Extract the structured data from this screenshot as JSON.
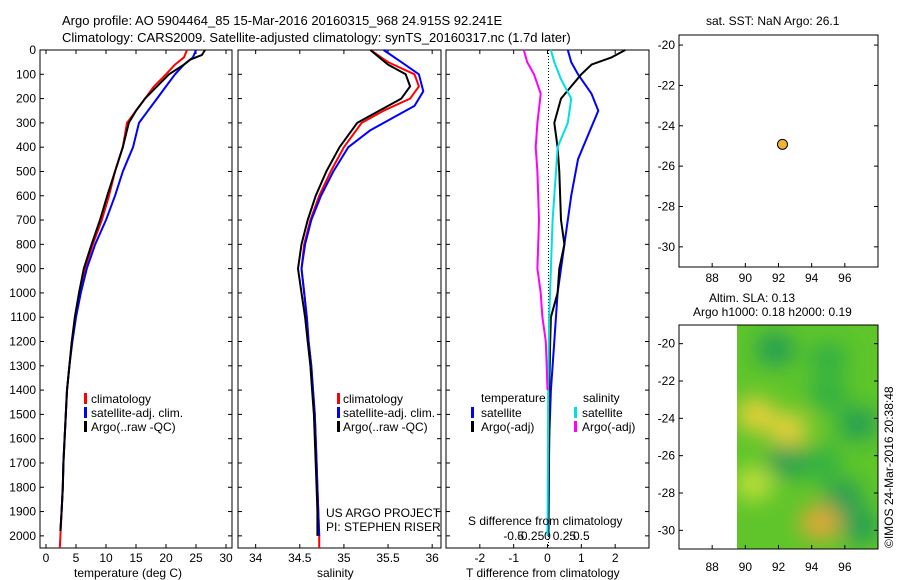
{
  "header": {
    "line1": "Argo profile: AO 5904464_85 15-Mar-2016 20160315_968 24.915S 92.241E",
    "line2": "Climatology: CARS2009. Satellite-adjusted climatology: synTS_20160317.nc (1.7d later)"
  },
  "colors": {
    "clim": "#ff0000",
    "sat": "#0000ff",
    "argo": "#000000",
    "sat_s": "#00e0e0",
    "argo_s": "#ff00ff"
  },
  "depth_axis": {
    "ticks": [
      0,
      100,
      200,
      300,
      400,
      500,
      600,
      700,
      800,
      900,
      1000,
      1100,
      1200,
      1300,
      1400,
      1500,
      1600,
      1700,
      1800,
      1900,
      2000
    ],
    "range": [
      0,
      2050
    ]
  },
  "chart_data": [
    {
      "type": "line",
      "name": "temperature-profile",
      "xlabel": "temperature (deg C)",
      "xlim": [
        -1,
        31
      ],
      "xticks": [
        0,
        5,
        10,
        15,
        20,
        25,
        30
      ],
      "yrange": [
        0,
        2050
      ],
      "legend": [
        "climatology",
        "satellite-adj. clim.",
        "Argo(..raw -QC)"
      ],
      "series": [
        {
          "name": "climatology",
          "color": "#ff0000",
          "points": [
            [
              23.5,
              0
            ],
            [
              23,
              30
            ],
            [
              21.5,
              60
            ],
            [
              20,
              100
            ],
            [
              18,
              150
            ],
            [
              16.5,
              200
            ],
            [
              15,
              250
            ],
            [
              13.5,
              300
            ],
            [
              12.8,
              400
            ],
            [
              11.5,
              500
            ],
            [
              10.5,
              600
            ],
            [
              9.3,
              700
            ],
            [
              7.8,
              800
            ],
            [
              6.5,
              900
            ],
            [
              5.6,
              1000
            ],
            [
              4.9,
              1100
            ],
            [
              4.3,
              1200
            ],
            [
              3.9,
              1300
            ],
            [
              3.5,
              1400
            ],
            [
              3.3,
              1500
            ],
            [
              3.1,
              1600
            ],
            [
              2.9,
              1700
            ],
            [
              2.8,
              1800
            ],
            [
              2.6,
              1900
            ],
            [
              2.4,
              2000
            ],
            [
              2.3,
              2050
            ]
          ]
        },
        {
          "name": "satellite-adj. clim.",
          "color": "#0000ff",
          "points": [
            [
              25,
              0
            ],
            [
              24.5,
              30
            ],
            [
              23,
              60
            ],
            [
              21.5,
              100
            ],
            [
              20,
              150
            ],
            [
              18.5,
              200
            ],
            [
              17,
              250
            ],
            [
              15.5,
              300
            ],
            [
              14.5,
              400
            ],
            [
              12.8,
              500
            ],
            [
              11.5,
              600
            ],
            [
              10,
              700
            ],
            [
              8.2,
              800
            ],
            [
              6.8,
              900
            ],
            [
              5.8,
              1000
            ],
            [
              5,
              1100
            ],
            [
              4.4,
              1200
            ],
            [
              3.9,
              1300
            ],
            [
              3.5,
              1400
            ],
            [
              3.3,
              1500
            ],
            [
              3.1,
              1600
            ],
            [
              2.9,
              1700
            ],
            [
              2.8,
              1800
            ],
            [
              2.6,
              1900
            ],
            [
              2.4,
              1980
            ]
          ]
        },
        {
          "name": "Argo(..raw -QC)",
          "color": "#000000",
          "points": [
            [
              26.5,
              0
            ],
            [
              26,
              20
            ],
            [
              24,
              40
            ],
            [
              23,
              60
            ],
            [
              20.5,
              100
            ],
            [
              18.5,
              150
            ],
            [
              16.5,
              200
            ],
            [
              15,
              250
            ],
            [
              13.8,
              300
            ],
            [
              12.8,
              400
            ],
            [
              11.5,
              500
            ],
            [
              10.2,
              600
            ],
            [
              9,
              700
            ],
            [
              7.6,
              800
            ],
            [
              6.3,
              900
            ],
            [
              5.5,
              1000
            ],
            [
              4.8,
              1100
            ],
            [
              4.3,
              1200
            ],
            [
              3.9,
              1300
            ],
            [
              3.5,
              1400
            ],
            [
              3.3,
              1500
            ],
            [
              3.1,
              1600
            ],
            [
              2.9,
              1700
            ],
            [
              2.8,
              1800
            ],
            [
              2.6,
              1900
            ],
            [
              2.4,
              1980
            ]
          ]
        }
      ]
    },
    {
      "type": "line",
      "name": "salinity-profile",
      "xlabel": "salinity",
      "xlim": [
        33.8,
        36.1
      ],
      "xticks": [
        34,
        34.5,
        35,
        35.5,
        36
      ],
      "yrange": [
        0,
        2050
      ],
      "legend": [
        "climatology",
        "satellite-adj. clim.",
        "Argo(..raw -QC)"
      ],
      "series": [
        {
          "name": "climatology",
          "color": "#ff0000",
          "points": [
            [
              35.3,
              0
            ],
            [
              35.5,
              50
            ],
            [
              35.8,
              100
            ],
            [
              35.85,
              150
            ],
            [
              35.75,
              200
            ],
            [
              35.45,
              250
            ],
            [
              35.2,
              300
            ],
            [
              35,
              400
            ],
            [
              34.85,
              500
            ],
            [
              34.72,
              600
            ],
            [
              34.62,
              700
            ],
            [
              34.55,
              800
            ],
            [
              34.52,
              900
            ],
            [
              34.55,
              1000
            ],
            [
              34.58,
              1100
            ],
            [
              34.6,
              1200
            ],
            [
              34.63,
              1300
            ],
            [
              34.65,
              1400
            ],
            [
              34.67,
              1500
            ],
            [
              34.68,
              1600
            ],
            [
              34.69,
              1700
            ],
            [
              34.7,
              1800
            ],
            [
              34.71,
              1900
            ],
            [
              34.72,
              2000
            ],
            [
              34.72,
              2050
            ]
          ]
        },
        {
          "name": "satellite-adj. clim.",
          "color": "#0000ff",
          "points": [
            [
              35.45,
              0
            ],
            [
              35.65,
              50
            ],
            [
              35.85,
              100
            ],
            [
              35.9,
              170
            ],
            [
              35.8,
              230
            ],
            [
              35.55,
              280
            ],
            [
              35.3,
              330
            ],
            [
              35.05,
              400
            ],
            [
              34.88,
              500
            ],
            [
              34.74,
              600
            ],
            [
              34.63,
              700
            ],
            [
              34.56,
              800
            ],
            [
              34.52,
              900
            ],
            [
              34.55,
              1000
            ],
            [
              34.58,
              1100
            ],
            [
              34.6,
              1200
            ],
            [
              34.63,
              1300
            ],
            [
              34.65,
              1400
            ],
            [
              34.67,
              1500
            ],
            [
              34.68,
              1600
            ],
            [
              34.69,
              1700
            ],
            [
              34.7,
              1800
            ],
            [
              34.71,
              1900
            ],
            [
              34.72,
              2000
            ]
          ]
        },
        {
          "name": "Argo(..raw -QC)",
          "color": "#000000",
          "points": [
            [
              35.3,
              0
            ],
            [
              35.4,
              30
            ],
            [
              35.5,
              60
            ],
            [
              35.7,
              100
            ],
            [
              35.75,
              150
            ],
            [
              35.65,
              200
            ],
            [
              35.4,
              250
            ],
            [
              35.15,
              300
            ],
            [
              34.95,
              400
            ],
            [
              34.8,
              500
            ],
            [
              34.68,
              600
            ],
            [
              34.59,
              700
            ],
            [
              34.52,
              800
            ],
            [
              34.48,
              900
            ],
            [
              34.52,
              1000
            ],
            [
              34.56,
              1100
            ],
            [
              34.59,
              1200
            ],
            [
              34.62,
              1300
            ],
            [
              34.64,
              1400
            ],
            [
              34.66,
              1500
            ],
            [
              34.67,
              1600
            ],
            [
              34.68,
              1700
            ],
            [
              34.69,
              1800
            ],
            [
              34.7,
              1900
            ],
            [
              34.7,
              2000
            ]
          ]
        }
      ]
    },
    {
      "type": "line",
      "name": "difference-profile",
      "xlabel": "T difference from climatology",
      "xlabel_top": "S difference from climatology",
      "xlim": [
        -3,
        3
      ],
      "xticks": [
        -2,
        -1,
        0,
        1,
        2
      ],
      "xticks_top": [
        "-0.5",
        "-0.25",
        "0",
        "0.25",
        "0.5"
      ],
      "yrange": [
        0,
        2050
      ],
      "legend_titles": [
        "temperature",
        "salinity"
      ],
      "legend_t": [
        "satellite",
        "Argo(-adj)"
      ],
      "legend_s": [
        "satellite",
        "Argo(-adj)"
      ],
      "series": [
        {
          "name": "T satellite",
          "color": "#0000ff",
          "points": [
            [
              0.6,
              0
            ],
            [
              0.7,
              50
            ],
            [
              0.9,
              100
            ],
            [
              1.3,
              180
            ],
            [
              1.5,
              250
            ],
            [
              1.2,
              350
            ],
            [
              0.9,
              450
            ],
            [
              0.7,
              600
            ],
            [
              0.5,
              800
            ],
            [
              0.3,
              1000
            ],
            [
              0.2,
              1200
            ],
            [
              0.1,
              1400
            ],
            [
              0.05,
              1600
            ],
            [
              0.03,
              2000
            ]
          ]
        },
        {
          "name": "T Argo(-adj)",
          "color": "#000000",
          "points": [
            [
              2.3,
              0
            ],
            [
              1.9,
              30
            ],
            [
              1.3,
              60
            ],
            [
              1.0,
              100
            ],
            [
              0.7,
              150
            ],
            [
              0.4,
              200
            ],
            [
              0.2,
              300
            ],
            [
              0.3,
              400
            ],
            [
              0.35,
              500
            ],
            [
              0.4,
              700
            ],
            [
              0.5,
              800
            ],
            [
              0.35,
              900
            ],
            [
              0.3,
              1000
            ],
            [
              0.1,
              1100
            ],
            [
              0.08,
              1200
            ],
            [
              0.05,
              1400
            ],
            [
              0.05,
              1600
            ],
            [
              0.03,
              1800
            ],
            [
              0.02,
              2000
            ]
          ]
        },
        {
          "name": "S satellite",
          "color": "#00e0e0",
          "points": [
            [
              0.1,
              0
            ],
            [
              0.2,
              50
            ],
            [
              0.4,
              120
            ],
            [
              0.7,
              200
            ],
            [
              0.6,
              300
            ],
            [
              0.3,
              400
            ],
            [
              0.25,
              500
            ],
            [
              0.15,
              700
            ],
            [
              0.1,
              900
            ],
            [
              0.05,
              1100
            ],
            [
              0.02,
              1400
            ],
            [
              0.01,
              1800
            ],
            [
              0.0,
              2000
            ]
          ]
        },
        {
          "name": "S Argo(-adj)",
          "color": "#ff00ff",
          "points": [
            [
              -0.7,
              0
            ],
            [
              -0.6,
              50
            ],
            [
              -0.4,
              100
            ],
            [
              -0.2,
              180
            ],
            [
              -0.3,
              300
            ],
            [
              -0.35,
              400
            ],
            [
              -0.3,
              500
            ],
            [
              -0.25,
              700
            ],
            [
              -0.3,
              900
            ],
            [
              -0.2,
              1000
            ],
            [
              -0.15,
              1100
            ],
            [
              -0.05,
              1200
            ],
            [
              0.0,
              1400
            ]
          ]
        }
      ]
    },
    {
      "type": "scatter",
      "name": "location-map",
      "title": "sat. SST: NaN  Argo: 26.1",
      "xlim": [
        86,
        98
      ],
      "ylim": [
        -31,
        -19.5
      ],
      "xticks": [
        88,
        90,
        92,
        94,
        96
      ],
      "yticks": [
        -20,
        -22,
        -24,
        -26,
        -28,
        -30
      ],
      "points": [
        [
          92.24,
          -24.92
        ]
      ],
      "point_color": "#f2b530"
    },
    {
      "type": "heatmap",
      "name": "sla-map",
      "title1": "Altim. SLA: 0.13",
      "title2": "Argo h1000: 0.18 h2000: 0.19",
      "xlim": [
        86,
        98
      ],
      "ylim": [
        -31,
        -19
      ],
      "xticks": [
        88,
        90,
        92,
        94,
        96
      ],
      "yticks": [
        -20,
        -22,
        -24,
        -26,
        -28,
        -30
      ],
      "data_xlim": [
        89.8,
        98
      ],
      "blobs": [
        {
          "x": 91.8,
          "y": -20.3,
          "v": 0.2
        },
        {
          "x": 95.0,
          "y": -20.8,
          "v": 0.4
        },
        {
          "x": 90.6,
          "y": -23.8,
          "v": 0.75
        },
        {
          "x": 92.6,
          "y": -24.6,
          "v": 0.7
        },
        {
          "x": 95.0,
          "y": -22.7,
          "v": 0.3
        },
        {
          "x": 96.8,
          "y": -24.3,
          "v": 0.15
        },
        {
          "x": 92.5,
          "y": -26.3,
          "v": 0.1
        },
        {
          "x": 94.6,
          "y": -26.4,
          "v": 0.4
        },
        {
          "x": 90.5,
          "y": -27.5,
          "v": 0.6
        },
        {
          "x": 95.9,
          "y": -28.2,
          "v": 0.2
        },
        {
          "x": 94.5,
          "y": -29.6,
          "v": 0.95
        },
        {
          "x": 96.9,
          "y": -29.8,
          "v": 0.2
        }
      ]
    }
  ],
  "credits": {
    "line1": "US ARGO PROJECT",
    "line2": "PI: STEPHEN RISER"
  },
  "side_stamp": "©IMOS 24-Mar-2016 20:38:48"
}
